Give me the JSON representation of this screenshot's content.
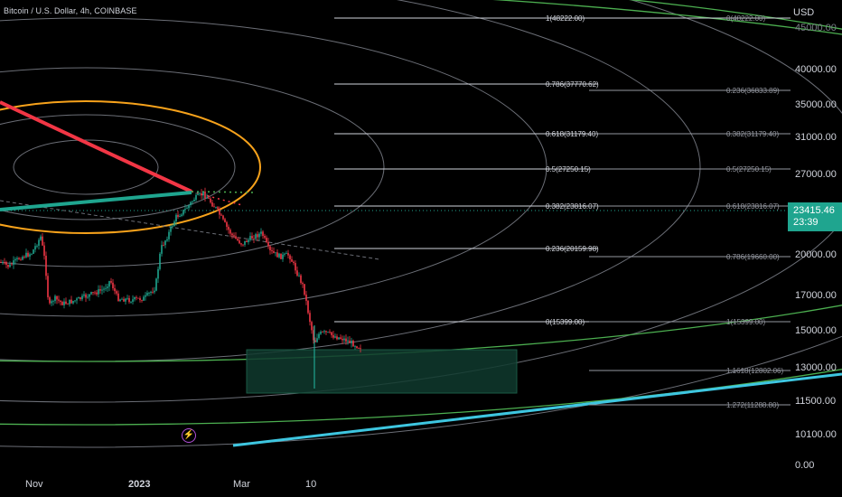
{
  "chart_title": "Bitcoin / U.S. Dollar, 4h, COINBASE",
  "currency_label": "USD",
  "current_price": {
    "value": "23415.46",
    "countdown": "23:39"
  },
  "colors": {
    "background": "#000000",
    "orange_arc": "#f7a21b",
    "red_trend": "#f23645",
    "teal_trend": "#1fa58f",
    "green_arc": "#4caf50",
    "cyan_line": "#3ec6e0",
    "zone_fill": "#0f3a2e",
    "fib_line": "#d1d4dc"
  },
  "price_axis": {
    "ticks": [
      "40000.00",
      "35000.00",
      "31000.00",
      "27000.00",
      "20000.00",
      "17000.00",
      "15000.00",
      "13000.00",
      "11500.00",
      "10100.00",
      "0.00"
    ],
    "top_clipped": "45000.00"
  },
  "time_axis": {
    "ticks": [
      "Nov",
      "2023",
      "Mar",
      "10"
    ]
  },
  "fib_left": [
    "1(48222.00)",
    "0.786(37770.62)",
    "0.618(31179.40)",
    "0.5(27250.15)",
    "0.382(23816.07)",
    "0.236(20159.98)",
    "0(15399.00)"
  ],
  "fib_right": [
    "0(48222.00)",
    "0.236(36833.89)",
    "0.382(31179.40)",
    "0.5(27250.15)",
    "0.618(23816.07)",
    "0.786(19660.00)",
    "1(15399.00)",
    "1.1618(12802.06)",
    "1.272(11288.80)"
  ],
  "icons": {
    "event_marker": "lightning-icon"
  }
}
